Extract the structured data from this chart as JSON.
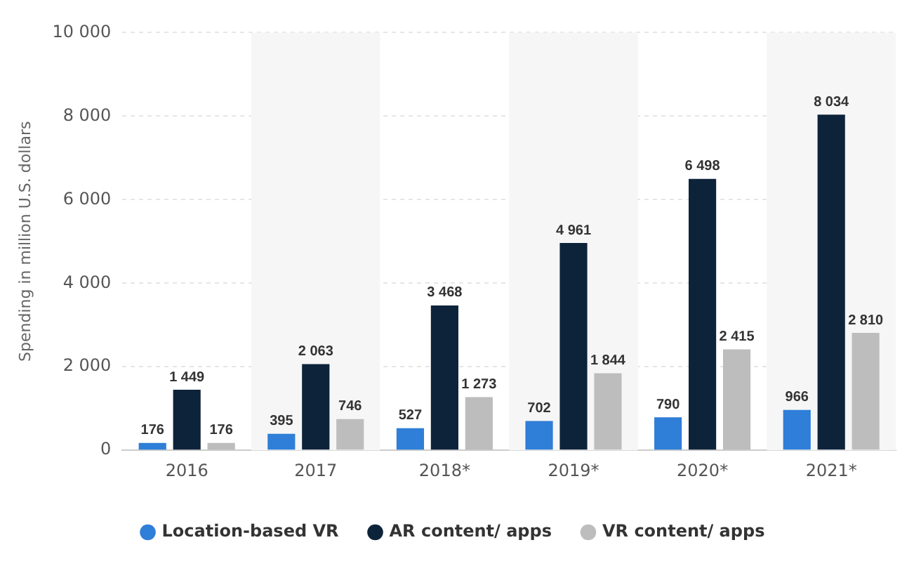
{
  "chart_data": {
    "type": "bar",
    "ylabel": "Spending in million U.S. dollars",
    "categories": [
      "2016",
      "2017",
      "2018*",
      "2019*",
      "2020*",
      "2021*"
    ],
    "series": [
      {
        "name": "Location-based VR",
        "color": "#2f7ed8",
        "values": [
          176,
          395,
          527,
          702,
          790,
          966
        ],
        "value_labels": [
          "176",
          "395",
          "527",
          "702",
          "790",
          "966"
        ]
      },
      {
        "name": "AR content/ apps",
        "color": "#0d233a",
        "values": [
          1449,
          2063,
          3468,
          4961,
          6498,
          8034
        ],
        "value_labels": [
          "1 449",
          "2 063",
          "3 468",
          "4 961",
          "6 498",
          "8 034"
        ]
      },
      {
        "name": "VR content/ apps",
        "color": "#bdbdbd",
        "values": [
          176,
          746,
          1273,
          1844,
          2415,
          2810
        ],
        "value_labels": [
          "176",
          "746",
          "1 273",
          "1 844",
          "2 415",
          "2 810"
        ]
      }
    ],
    "ylim": [
      0,
      10000
    ],
    "yticks": [
      0,
      {
        "value": 2000,
        "label": "2 000"
      },
      {
        "value": 4000,
        "label": "4 000"
      },
      {
        "value": 6000,
        "label": "6 000"
      },
      {
        "value": 8000,
        "label": "8 000"
      },
      {
        "value": 10000,
        "label": "10 000"
      }
    ],
    "bands": [
      {
        "axis": "x",
        "from": "2017",
        "to": "2017",
        "color": "#f6f6f6"
      },
      {
        "axis": "x",
        "from": "2019*",
        "to": "2019*",
        "color": "#f6f6f6"
      },
      {
        "axis": "x",
        "from": "2021*",
        "to": "2021*",
        "color": "#f6f6f6"
      }
    ],
    "grid": "y",
    "legend": "bottom"
  }
}
